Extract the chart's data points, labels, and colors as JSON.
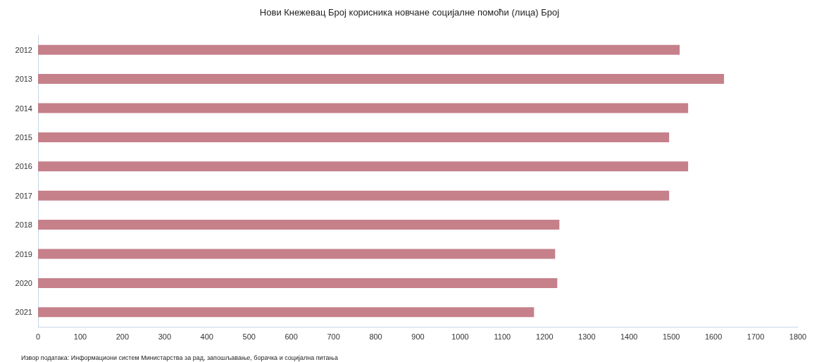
{
  "chart_data": {
    "type": "bar",
    "orientation": "horizontal",
    "title": "Нови Кнежевац Број корисника новчане социјалне помоћи (лица) Број",
    "categories": [
      "2012",
      "2013",
      "2014",
      "2015",
      "2016",
      "2017",
      "2018",
      "2019",
      "2020",
      "2021"
    ],
    "values": [
      1520,
      1625,
      1540,
      1495,
      1540,
      1495,
      1235,
      1225,
      1230,
      1175
    ],
    "color": "#c5808a",
    "xlim": [
      0,
      1800
    ],
    "xticks": [
      0,
      100,
      200,
      300,
      400,
      500,
      600,
      700,
      800,
      900,
      1000,
      1100,
      1200,
      1300,
      1400,
      1500,
      1600,
      1700,
      1800
    ],
    "grid": false,
    "annotations": [
      "Извор података: Информациони систем Министарства за рад, запошљавање, борачка и социјална питања"
    ]
  }
}
